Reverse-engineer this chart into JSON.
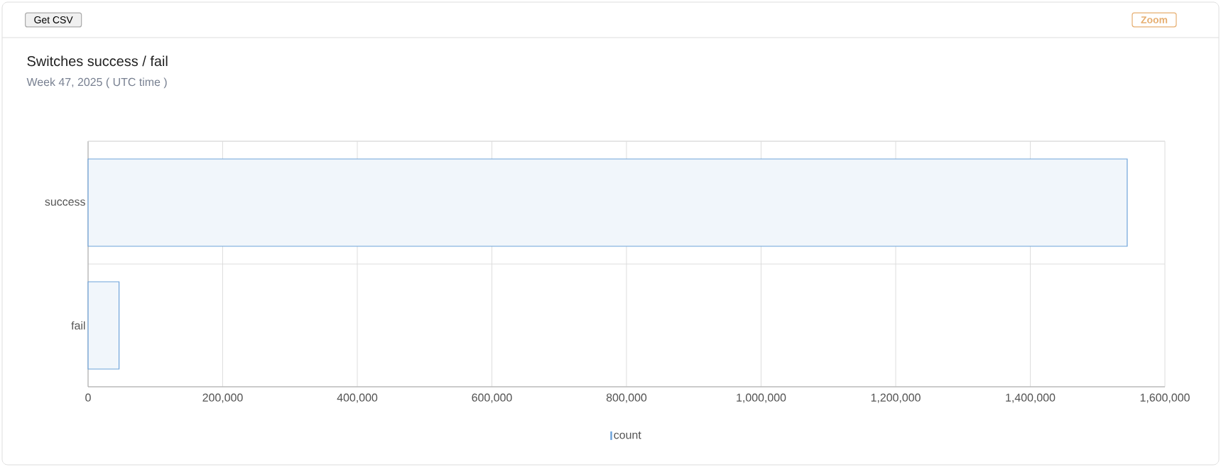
{
  "chart_data": {
    "type": "bar",
    "orientation": "horizontal",
    "title": "Switches success / fail",
    "subtitle": "Week 47, 2025   ( UTC time )",
    "categories": [
      "success",
      "fail"
    ],
    "series": [
      {
        "name": "count",
        "color": "#6fa3da",
        "values": [
          1544000,
          46000
        ]
      }
    ],
    "xlim": [
      0,
      1600000
    ],
    "xticks": [
      {
        "value": 0,
        "label": "0"
      },
      {
        "value": 200000,
        "label": "200,000"
      },
      {
        "value": 400000,
        "label": "400,000"
      },
      {
        "value": 600000,
        "label": "600,000"
      },
      {
        "value": 800000,
        "label": "800,000"
      },
      {
        "value": 1000000,
        "label": "1,000,000"
      },
      {
        "value": 1200000,
        "label": "1,200,000"
      },
      {
        "value": 1400000,
        "label": "1,400,000"
      },
      {
        "value": 1600000,
        "label": "1,600,000"
      }
    ],
    "grid": true,
    "legend": "bottom",
    "annotations": [
      "Get CSV",
      "Zoom"
    ]
  }
}
